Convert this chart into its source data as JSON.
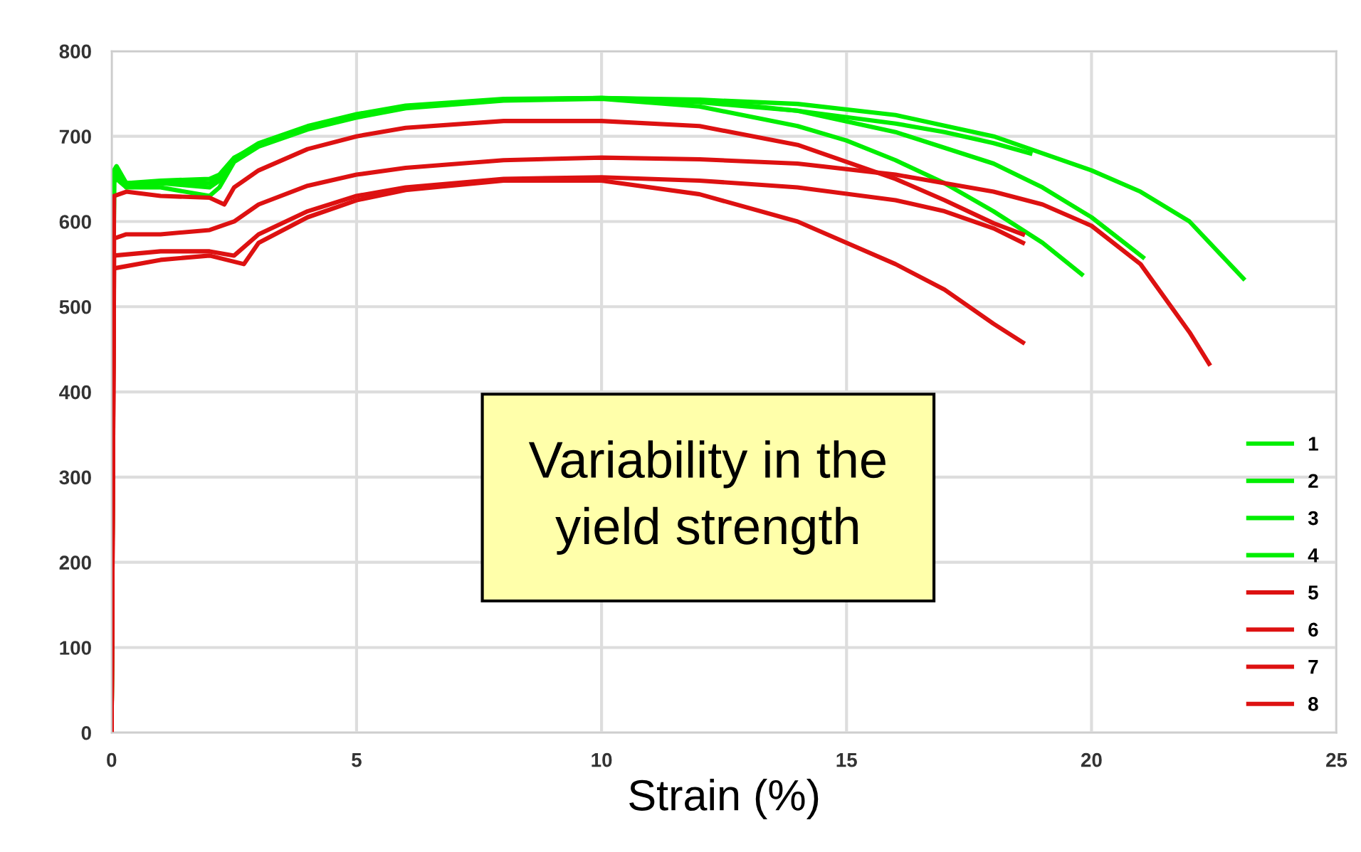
{
  "chart_data": {
    "type": "line",
    "xlabel": "Strain (%)",
    "annotations": [
      "Variability in the\nyield strength"
    ],
    "xlim": [
      0,
      25
    ],
    "ylim": [
      0,
      800
    ],
    "xticks": [
      0,
      5,
      10,
      15,
      20,
      25
    ],
    "yticks": [
      0,
      100,
      200,
      300,
      400,
      500,
      600,
      700,
      800
    ],
    "grid": true,
    "legend": "bottom right",
    "line_style": "solid",
    "series": [
      {
        "name": "1",
        "color": "#00ee00",
        "x": [
          0,
          0.05,
          0.1,
          0.3,
          1,
          2,
          2.2,
          2.5,
          3,
          4,
          5,
          6,
          8,
          10,
          12,
          14,
          16,
          17,
          18,
          18.75
        ],
        "values": [
          0,
          660,
          665,
          645,
          648,
          650,
          655,
          675,
          690,
          710,
          725,
          735,
          743,
          745,
          740,
          730,
          715,
          705,
          692,
          680
        ]
      },
      {
        "name": "2",
        "color": "#00ee00",
        "x": [
          0,
          0.05,
          0.1,
          0.3,
          1,
          2,
          2.2,
          2.5,
          3,
          4,
          5,
          6,
          8,
          10,
          12,
          14,
          15,
          16,
          17,
          18,
          19,
          19.8
        ],
        "values": [
          0,
          655,
          650,
          640,
          640,
          630,
          640,
          670,
          688,
          708,
          722,
          733,
          742,
          744,
          735,
          712,
          695,
          672,
          645,
          612,
          575,
          538
        ]
      },
      {
        "name": "3",
        "color": "#00ee00",
        "x": [
          0,
          0.05,
          0.1,
          0.3,
          1,
          2,
          2.2,
          2.5,
          3,
          4,
          5,
          6,
          8,
          10,
          12,
          14,
          16,
          18,
          19,
          20,
          21.05
        ],
        "values": [
          0,
          650,
          660,
          645,
          645,
          640,
          648,
          672,
          690,
          710,
          724,
          734,
          743,
          745,
          742,
          730,
          705,
          668,
          640,
          605,
          558
        ]
      },
      {
        "name": "4",
        "color": "#00ee00",
        "x": [
          0,
          0.05,
          0.1,
          0.3,
          1,
          2,
          2.2,
          2.5,
          3,
          4,
          5,
          6,
          8,
          10,
          12,
          14,
          16,
          18,
          20,
          21,
          22,
          23.1
        ],
        "values": [
          0,
          645,
          655,
          640,
          645,
          645,
          650,
          674,
          692,
          712,
          726,
          736,
          744,
          745,
          743,
          738,
          725,
          700,
          660,
          635,
          600,
          533
        ]
      },
      {
        "name": "5",
        "color": "#dd1111",
        "x": [
          0,
          0.05,
          0.3,
          1,
          2,
          2.3,
          2.5,
          3,
          4,
          5,
          6,
          8,
          10,
          12,
          14,
          15,
          16,
          17,
          18,
          18.6
        ],
        "values": [
          0,
          630,
          635,
          630,
          628,
          620,
          640,
          660,
          685,
          700,
          710,
          718,
          718,
          712,
          690,
          670,
          650,
          625,
          598,
          585
        ]
      },
      {
        "name": "6",
        "color": "#dd1111",
        "x": [
          0,
          0.05,
          0.3,
          1,
          2,
          2.5,
          3,
          4,
          5,
          6,
          8,
          10,
          12,
          14,
          16,
          18,
          19,
          20,
          21,
          22,
          22.4
        ],
        "values": [
          0,
          580,
          585,
          585,
          590,
          600,
          620,
          642,
          655,
          663,
          672,
          675,
          673,
          668,
          655,
          635,
          620,
          595,
          550,
          470,
          433
        ]
      },
      {
        "name": "7",
        "color": "#dd1111",
        "x": [
          0,
          0.05,
          1,
          2,
          2.5,
          3,
          4,
          5,
          6,
          8,
          10,
          12,
          14,
          16,
          17,
          18,
          18.6
        ],
        "values": [
          0,
          560,
          565,
          565,
          560,
          585,
          612,
          630,
          640,
          650,
          652,
          648,
          640,
          625,
          612,
          592,
          575
        ]
      },
      {
        "name": "8",
        "color": "#dd1111",
        "x": [
          0,
          0.05,
          1,
          2,
          2.7,
          3,
          4,
          5,
          6,
          8,
          10,
          12,
          14,
          16,
          17,
          18,
          18.6
        ],
        "values": [
          0,
          545,
          555,
          560,
          550,
          575,
          605,
          625,
          637,
          648,
          648,
          632,
          600,
          550,
          520,
          480,
          458
        ]
      }
    ]
  }
}
